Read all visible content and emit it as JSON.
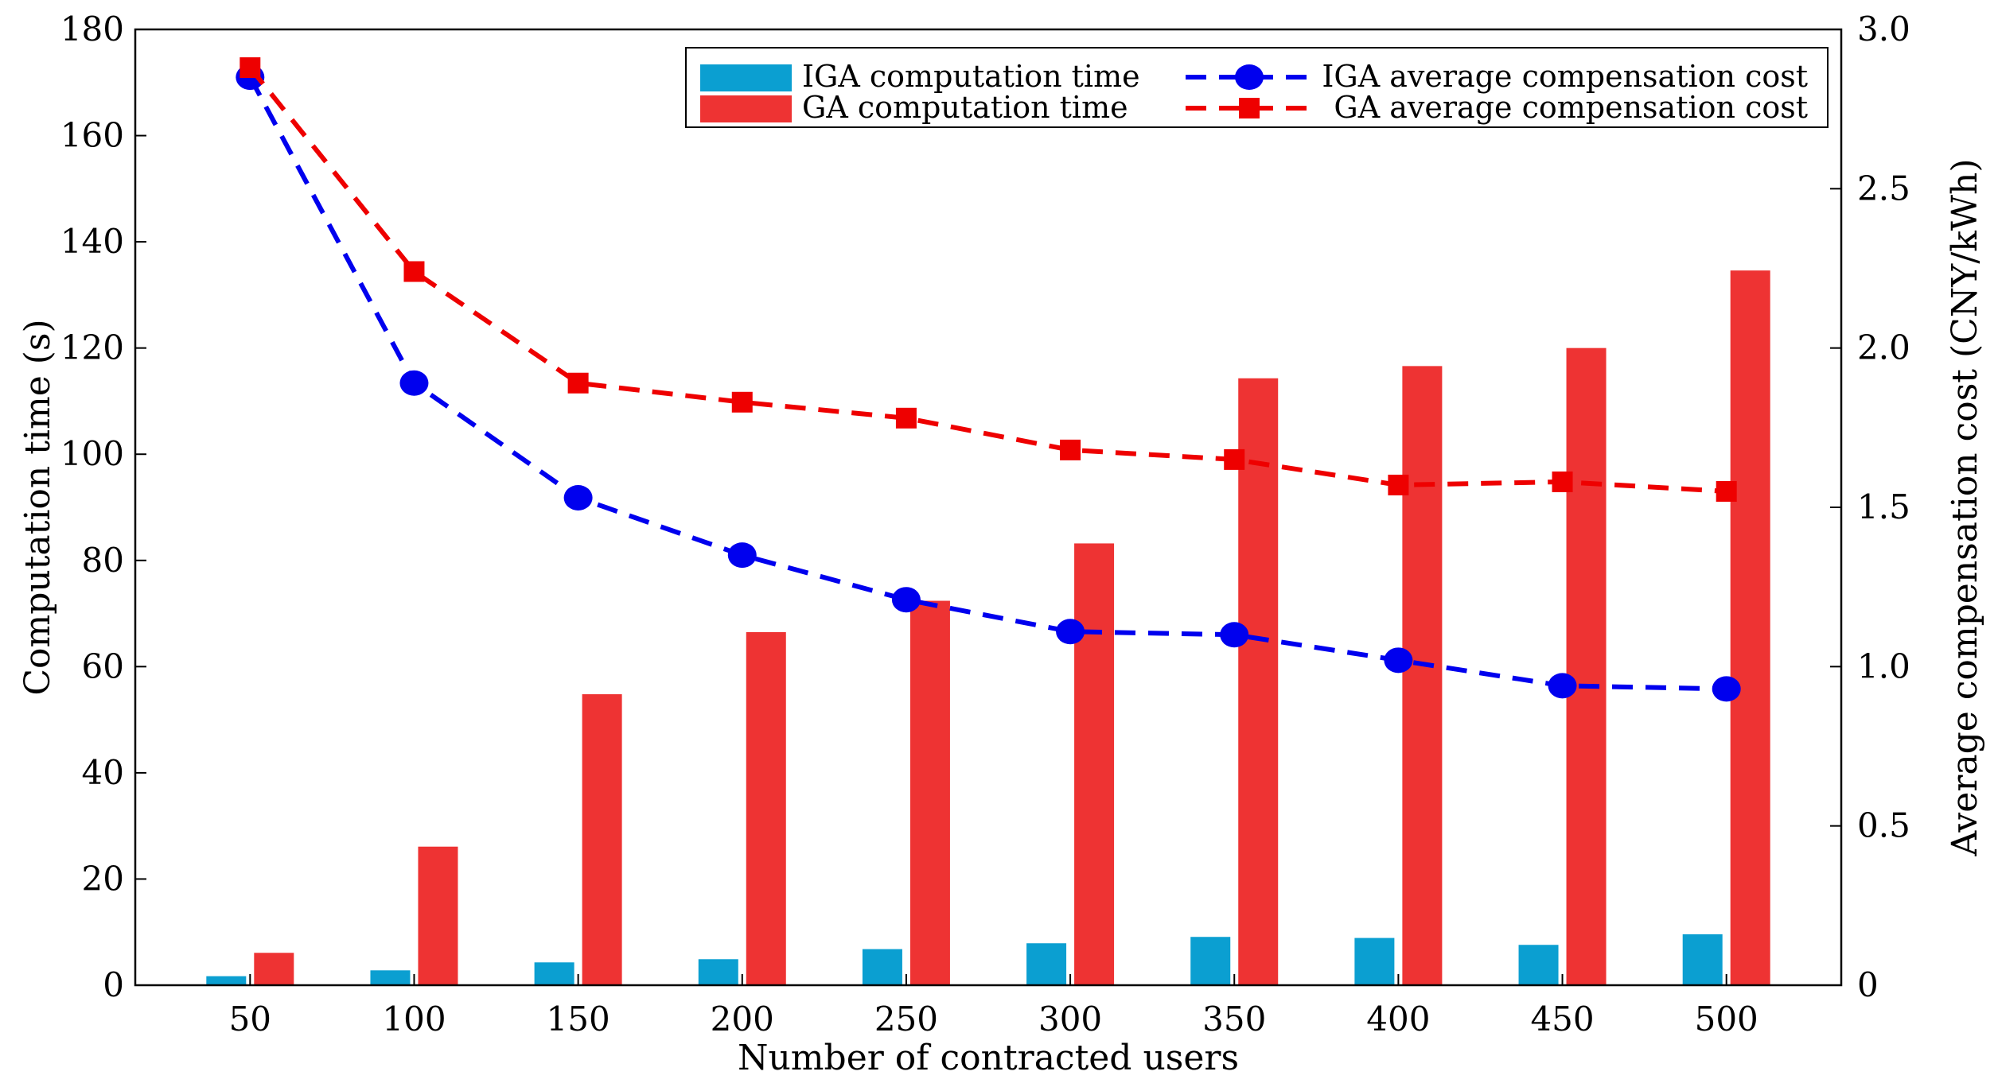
{
  "chart_data": {
    "type": "bar",
    "title": "",
    "categories": [
      "50",
      "100",
      "150",
      "200",
      "250",
      "300",
      "350",
      "400",
      "450",
      "500"
    ],
    "xlabel": "Number of contracted users",
    "ylabel": "Computation time (s)",
    "y2label": "Average compensation cost (CNY/kWh)",
    "ylim": [
      0,
      180
    ],
    "y2lim": [
      0,
      3.0
    ],
    "yticks": [
      "0",
      "20",
      "40",
      "60",
      "80",
      "100",
      "120",
      "140",
      "160",
      "180"
    ],
    "y2ticks": [
      "0",
      "0.5",
      "1.0",
      "1.5",
      "2.0",
      "2.5",
      "3.0"
    ],
    "grid": false,
    "legend_position": "top-right",
    "series": [
      {
        "name": "IGA computation time",
        "kind": "bar",
        "axis": "left",
        "color": "#0b9fd1",
        "values": [
          1.7,
          2.8,
          4.3,
          4.9,
          6.8,
          7.9,
          9.1,
          8.9,
          7.6,
          9.6
        ]
      },
      {
        "name": "GA computation time",
        "kind": "bar",
        "axis": "left",
        "color": "#ee3333",
        "values": [
          6.1,
          26.1,
          54.8,
          66.5,
          72.4,
          83.2,
          114.3,
          116.6,
          120.0,
          134.6
        ]
      },
      {
        "name": "IGA average compensation cost",
        "kind": "line",
        "axis": "right",
        "color": "#0000ee",
        "marker": "circle",
        "values": [
          2.85,
          1.89,
          1.53,
          1.35,
          1.21,
          1.11,
          1.1,
          1.02,
          0.94,
          0.93
        ]
      },
      {
        "name": "GA average compensation cost",
        "kind": "line",
        "axis": "right",
        "color": "#ee0000",
        "marker": "square",
        "values": [
          2.88,
          2.24,
          1.89,
          1.83,
          1.78,
          1.68,
          1.65,
          1.57,
          1.58,
          1.55
        ]
      }
    ]
  }
}
